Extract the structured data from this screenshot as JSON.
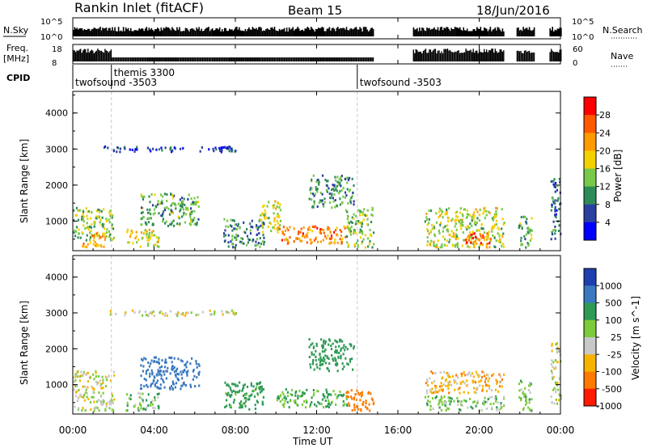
{
  "header": {
    "station": "Rankin Inlet (fitACF)",
    "beam": "Beam 15",
    "date": "18/Jun/2016"
  },
  "strip_nsky": {
    "label": "N.Sky",
    "ticks_left": [
      "10^5",
      "10^0"
    ],
    "right_label": "N.Search",
    "ticks_right": [
      "10^5",
      "10^0"
    ]
  },
  "strip_freq": {
    "label_line1": "Freq.",
    "label_line2": "[MHz]",
    "ticks_left": [
      "18",
      "8"
    ],
    "right_label": "Nave",
    "ticks_right": [
      "60",
      "0"
    ]
  },
  "cpid": {
    "label": "CPID",
    "segments": [
      {
        "name": "twofsound -3503",
        "start_hour": 0.0
      },
      {
        "name": "themis 3300",
        "start_hour": 1.9
      },
      {
        "name": "twofsound -3503",
        "start_hour": 14.0
      }
    ]
  },
  "x_axis": {
    "title": "Time UT",
    "ticks": [
      "00:00",
      "04:00",
      "08:00",
      "12:00",
      "16:00",
      "20:00",
      "00:00"
    ]
  },
  "power_panel": {
    "ylabel": "Slant Range [km]",
    "yticks": [
      "4000",
      "3000",
      "2000",
      "1000"
    ],
    "colorbar": {
      "title": "Power [dB]",
      "ticks": [
        "28",
        "24",
        "20",
        "16",
        "12",
        "8",
        "4"
      ],
      "colors": [
        "#ff0000",
        "#ff5a00",
        "#ff9a00",
        "#f4d000",
        "#78c84a",
        "#2e8b57",
        "#2a3fa0",
        "#0000ff"
      ]
    }
  },
  "velocity_panel": {
    "ylabel": "Slant Range [km]",
    "yticks": [
      "4000",
      "3000",
      "2000",
      "1000"
    ],
    "colorbar": {
      "title": "Velocity [m s^-1]",
      "ticks": [
        "1000",
        "500",
        "100",
        "25",
        "-25",
        "-100",
        "-500",
        "-1000"
      ],
      "colors": [
        "#1e3fb0",
        "#3a78c0",
        "#2e9a56",
        "#7ccb3a",
        "#c8c8c8",
        "#f6b400",
        "#ff7a00",
        "#ff1a00"
      ]
    }
  },
  "chart_data": {
    "type": "heatmap",
    "title": "Rankin Inlet (fitACF)",
    "subtitle": "Beam 15",
    "date_label": "18/Jun/2016",
    "xlabel": "Time UT",
    "x_range_hours": [
      0,
      24
    ],
    "y_range_km": [
      180,
      4600
    ],
    "panels": [
      {
        "name": "Power",
        "colorbar_label": "Power [dB]",
        "color_range": [
          0,
          32
        ],
        "echo_regions": [
          {
            "t0": 0.0,
            "t1": 2.0,
            "r0": 500,
            "r1": 1400,
            "value": 14
          },
          {
            "t0": 0.4,
            "t1": 1.6,
            "r0": 300,
            "r1": 700,
            "value": 22
          },
          {
            "t0": 1.5,
            "t1": 5.5,
            "r0": 2950,
            "r1": 3100,
            "value": 6
          },
          {
            "t0": 2.6,
            "t1": 4.2,
            "r0": 300,
            "r1": 800,
            "value": 18
          },
          {
            "t0": 3.3,
            "t1": 6.2,
            "r0": 900,
            "r1": 1800,
            "value": 12
          },
          {
            "t0": 6.2,
            "t1": 8.0,
            "r0": 2950,
            "r1": 3100,
            "value": 6
          },
          {
            "t0": 7.4,
            "t1": 9.4,
            "r0": 300,
            "r1": 1100,
            "value": 10
          },
          {
            "t0": 9.2,
            "t1": 10.2,
            "r0": 700,
            "r1": 1600,
            "value": 16
          },
          {
            "t0": 10.0,
            "t1": 13.5,
            "r0": 400,
            "r1": 900,
            "value": 24
          },
          {
            "t0": 11.6,
            "t1": 13.8,
            "r0": 1400,
            "r1": 2300,
            "value": 10
          },
          {
            "t0": 13.4,
            "t1": 14.8,
            "r0": 300,
            "r1": 1400,
            "value": 14
          },
          {
            "t0": 17.3,
            "t1": 21.2,
            "r0": 300,
            "r1": 1400,
            "value": 16
          },
          {
            "t0": 19.2,
            "t1": 20.6,
            "r0": 400,
            "r1": 700,
            "value": 26
          },
          {
            "t0": 21.9,
            "t1": 22.6,
            "r0": 300,
            "r1": 1200,
            "value": 12
          },
          {
            "t0": 23.5,
            "t1": 24.0,
            "r0": 500,
            "r1": 2200,
            "value": 8
          }
        ]
      },
      {
        "name": "Velocity",
        "colorbar_label": "Velocity [m s^-1]",
        "color_range": [
          -1000,
          1000
        ],
        "echo_regions": [
          {
            "t0": 0.0,
            "t1": 2.0,
            "r0": 300,
            "r1": 1400,
            "value": 0
          },
          {
            "t0": 1.5,
            "t1": 8.0,
            "r0": 2950,
            "r1": 3100,
            "value": 0
          },
          {
            "t0": 2.6,
            "t1": 4.2,
            "r0": 300,
            "r1": 800,
            "value": 60
          },
          {
            "t0": 3.3,
            "t1": 6.2,
            "r0": 900,
            "r1": 1800,
            "value": 800
          },
          {
            "t0": 7.4,
            "t1": 9.4,
            "r0": 300,
            "r1": 1100,
            "value": 150
          },
          {
            "t0": 10.0,
            "t1": 13.5,
            "r0": 400,
            "r1": 900,
            "value": 120
          },
          {
            "t0": 11.6,
            "t1": 13.8,
            "r0": 1400,
            "r1": 2300,
            "value": 300
          },
          {
            "t0": 13.4,
            "t1": 14.8,
            "r0": 300,
            "r1": 900,
            "value": -300
          },
          {
            "t0": 17.3,
            "t1": 21.2,
            "r0": 800,
            "r1": 1400,
            "value": -60
          },
          {
            "t0": 17.3,
            "t1": 21.2,
            "r0": 300,
            "r1": 700,
            "value": 80
          },
          {
            "t0": 21.9,
            "t1": 22.6,
            "r0": 300,
            "r1": 1200,
            "value": 60
          },
          {
            "t0": 23.5,
            "t1": 24.0,
            "r0": 500,
            "r1": 2200,
            "value": 0
          }
        ]
      }
    ],
    "data_gaps_hours": [
      [
        14.8,
        16.7
      ],
      [
        21.2,
        21.8
      ],
      [
        22.7,
        23.4
      ]
    ]
  }
}
